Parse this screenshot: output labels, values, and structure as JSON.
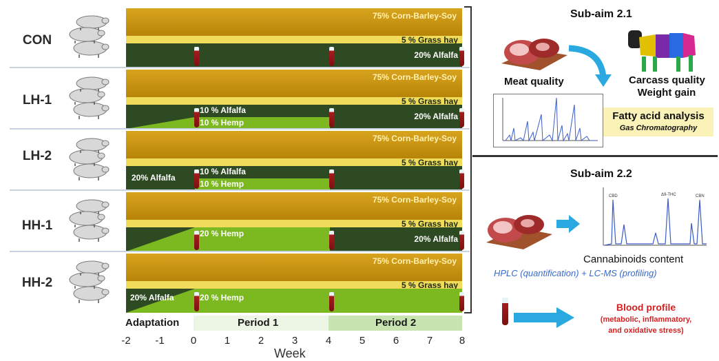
{
  "groups": [
    {
      "label": "CON",
      "corn": "75% Corn-Barley-Soy",
      "hay": "5 % Grass hay",
      "right": "20% Alfalfa"
    },
    {
      "label": "LH-1",
      "corn": "75% Corn-Barley-Soy",
      "hay": "5 % Grass hay",
      "upper": "10 % Alfalfa",
      "lower": "10 % Hemp",
      "right": "20% Alfalfa"
    },
    {
      "label": "LH-2",
      "corn": "75% Corn-Barley-Soy",
      "hay": "5 % Grass hay",
      "left": "20% Alfalfa",
      "upper": "10 % Alfalfa",
      "lower": "10 % Hemp"
    },
    {
      "label": "HH-1",
      "corn": "75% Corn-Barley-Soy",
      "hay": "5 % Grass hay",
      "middle": "20 % Hemp",
      "right": "20% Alfalfa"
    },
    {
      "label": "HH-2",
      "corn": "75% Corn-Barley-Soy",
      "hay": "5 % Grass hay",
      "left": "20% Alfalfa",
      "middle": "20 % Hemp"
    }
  ],
  "phases": {
    "adaptation": "Adaptation",
    "period1": "Period 1",
    "period2": "Period 2"
  },
  "axis": {
    "title": "Week",
    "ticks": [
      "-2",
      "-1",
      "0",
      "1",
      "2",
      "3",
      "4",
      "5",
      "6",
      "7",
      "8"
    ]
  },
  "subaim1": {
    "title": "Sub-aim 2.1",
    "meat": "Meat quality",
    "carcass_line1": "Carcass quality",
    "carcass_line2": "Weight gain",
    "fatty": "Fatty acid analysis",
    "gc": "Gas Chromatography"
  },
  "subaim2": {
    "title": "Sub-aim 2.2",
    "cannabinoids": "Cannabinoids content",
    "methods": "HPLC (quantification) + LC-MS (profiling)"
  },
  "blood": {
    "title": "Blood profile",
    "line2": "(metabolic, inflammatory,",
    "line3": "and oxidative stress)"
  },
  "colors": {
    "corn": "#c9920e",
    "hay": "#f0dc5a",
    "dark_green": "#2e4a22",
    "light_green": "#7cb820",
    "blood_red": "#d42020",
    "arrow_blue": "#2aa8e0"
  }
}
